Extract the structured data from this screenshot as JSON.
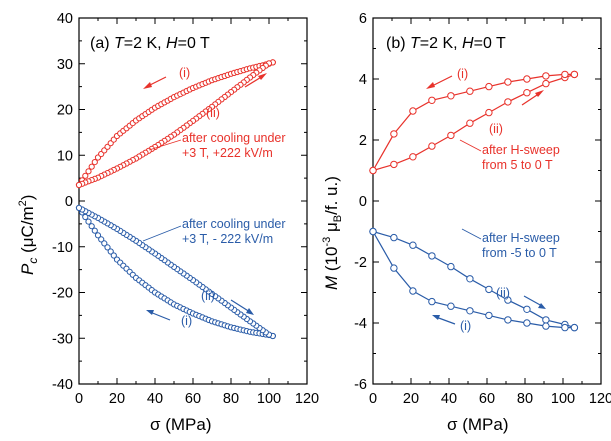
{
  "colors": {
    "red": "#e8322b",
    "blue": "#2a5ca8"
  },
  "chart_data": [
    {
      "type": "scatter",
      "panel_label": "(a)",
      "title": {
        "prefix": "(a) ",
        "v1": "T",
        "eq1": "=2 K, ",
        "v2": "H",
        "eq2": "=0 T"
      },
      "xlabel": "σ (MPa)",
      "ylabel": {
        "main": "P",
        "sub": "c",
        "unit_a": " (μC/m",
        "sup": "2",
        "unit_b": ")"
      },
      "xlim": [
        0,
        120
      ],
      "ylim": [
        -40,
        40
      ],
      "xticks": [
        "0",
        "20",
        "40",
        "60",
        "80",
        "100",
        "120"
      ],
      "yticks": [
        "-40",
        "-30",
        "-20",
        "-10",
        "0",
        "10",
        "20",
        "30",
        "40"
      ],
      "series": [
        {
          "color": "red",
          "marker": "circle-open",
          "line": false,
          "dense": true,
          "x": [
            0,
            102,
            0
          ],
          "y": [
            3.5,
            30.3,
            3.5
          ],
          "branches": [
            {
              "x": [
                0,
                10,
                20,
                30,
                40,
                50,
                60,
                70,
                80,
                90,
                100,
                102
              ],
              "y": [
                3.5,
                9.5,
                14.2,
                17.6,
                20.4,
                22.7,
                24.7,
                26.4,
                27.8,
                29.0,
                30.0,
                30.3
              ]
            },
            {
              "x": [
                102,
                100,
                90,
                80,
                70,
                60,
                50,
                40,
                30,
                20,
                10,
                0
              ],
              "y": [
                30.3,
                30.1,
                27.0,
                23.8,
                20.6,
                17.5,
                14.5,
                11.8,
                9.3,
                7.1,
                5.1,
                3.5
              ]
            }
          ]
        },
        {
          "color": "blue",
          "marker": "circle-open",
          "line": false,
          "dense": true,
          "branches": [
            {
              "x": [
                0,
                10,
                20,
                30,
                40,
                50,
                60,
                70,
                80,
                90,
                100,
                102
              ],
              "y": [
                -1.5,
                -7.5,
                -12.8,
                -16.8,
                -20.0,
                -22.6,
                -24.6,
                -26.3,
                -27.6,
                -28.6,
                -29.3,
                -29.5
              ]
            },
            {
              "x": [
                102,
                100,
                90,
                80,
                70,
                60,
                50,
                40,
                30,
                20,
                10,
                0
              ],
              "y": [
                -29.5,
                -29.2,
                -26.3,
                -23.3,
                -20.3,
                -17.3,
                -14.4,
                -11.5,
                -8.7,
                -6.1,
                -3.7,
                -1.5
              ]
            }
          ]
        }
      ],
      "annotations": [
        {
          "text": "(i)",
          "color": "red"
        },
        {
          "text": "(ii)",
          "color": "red"
        },
        {
          "text": "after cooling under",
          "color": "red"
        },
        {
          "text": "+3 T, +222 kV/m",
          "color": "red"
        },
        {
          "text": "after cooling under",
          "color": "blue"
        },
        {
          "text": "+3 T, - 222 kV/m",
          "color": "blue"
        },
        {
          "text": "(ii)",
          "color": "blue"
        },
        {
          "text": "(i)",
          "color": "blue"
        }
      ]
    },
    {
      "type": "line",
      "panel_label": "(b)",
      "title": {
        "prefix": "(b) ",
        "v1": "T",
        "eq1": "=2 K, ",
        "v2": "H",
        "eq2": "=0 T"
      },
      "xlabel": "σ (MPa)",
      "ylabel": {
        "main": "M",
        "unit_a": " (10",
        "sup": "-3",
        "unit_b": " μ",
        "sub2": "B",
        "unit_c": "/f. u.)"
      },
      "xlim": [
        0,
        120
      ],
      "ylim": [
        -6,
        6
      ],
      "xticks": [
        "0",
        "20",
        "40",
        "60",
        "80",
        "100",
        "120"
      ],
      "yticks": [
        "-6",
        "-4",
        "-2",
        "0",
        "2",
        "4",
        "6"
      ],
      "series": [
        {
          "color": "red",
          "marker": "circle-open",
          "line": true,
          "branches": [
            {
              "x": [
                0,
                11,
                21,
                31,
                41,
                51,
                61,
                71,
                81,
                91,
                101,
                106
              ],
              "y": [
                1.0,
                1.2,
                1.45,
                1.8,
                2.15,
                2.55,
                2.9,
                3.25,
                3.55,
                3.85,
                4.05,
                4.15
              ]
            },
            {
              "x": [
                106,
                101,
                91,
                81,
                71,
                61,
                51,
                41,
                31,
                21,
                11,
                0
              ],
              "y": [
                4.15,
                4.15,
                4.1,
                4.0,
                3.9,
                3.75,
                3.6,
                3.45,
                3.3,
                2.95,
                2.2,
                1.0
              ]
            }
          ]
        },
        {
          "color": "blue",
          "marker": "circle-open",
          "line": true,
          "branches": [
            {
              "x": [
                0,
                11,
                21,
                31,
                41,
                51,
                61,
                71,
                81,
                91,
                101,
                106
              ],
              "y": [
                -1.0,
                -1.2,
                -1.45,
                -1.8,
                -2.15,
                -2.55,
                -2.9,
                -3.25,
                -3.55,
                -3.9,
                -4.05,
                -4.15
              ]
            },
            {
              "x": [
                106,
                101,
                91,
                81,
                71,
                61,
                51,
                41,
                31,
                21,
                11,
                0
              ],
              "y": [
                -4.15,
                -4.15,
                -4.1,
                -4.0,
                -3.9,
                -3.75,
                -3.6,
                -3.45,
                -3.3,
                -2.95,
                -2.2,
                -1.0
              ]
            }
          ]
        }
      ],
      "annotations": [
        {
          "text": "(i)",
          "color": "red"
        },
        {
          "text": "(ii)",
          "color": "red"
        },
        {
          "text": "after H-sweep",
          "color": "red"
        },
        {
          "text": "from 5 to 0 T",
          "color": "red"
        },
        {
          "text": "after H-sweep",
          "color": "blue"
        },
        {
          "text": "from -5 to 0 T",
          "color": "blue"
        },
        {
          "text": "(ii)",
          "color": "blue"
        },
        {
          "text": "(i)",
          "color": "blue"
        }
      ]
    }
  ]
}
